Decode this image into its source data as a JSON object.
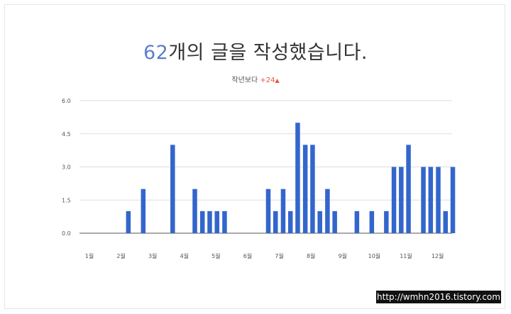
{
  "header": {
    "count": "62",
    "title_rest": "개의 글을 작성했습니다.",
    "compare_label": "작년보다 ",
    "compare_delta": "+24",
    "compare_arrow": "▲"
  },
  "watermark": "http://wmhn2016.tistory.com",
  "colors": {
    "bar": "#3366cc",
    "grid": "#dddddd",
    "accent": "#5b7fc9",
    "delta": "#e8553e"
  },
  "chart_data": {
    "type": "bar",
    "title": "",
    "xlabel": "",
    "ylabel": "",
    "ylim": [
      0,
      6
    ],
    "y_ticks": [
      "0.0",
      "1.5",
      "3.0",
      "4.5",
      "6.0"
    ],
    "categories": [
      "1월",
      "2월",
      "3월",
      "4월",
      "5월",
      "6월",
      "7월",
      "8월",
      "9월",
      "10월",
      "11월",
      "12월"
    ],
    "grid": true,
    "legend": "none",
    "bars": [
      {
        "x": 2.23,
        "value": 1
      },
      {
        "x": 2.7,
        "value": 2
      },
      {
        "x": 3.63,
        "value": 4
      },
      {
        "x": 4.33,
        "value": 2
      },
      {
        "x": 4.57,
        "value": 1
      },
      {
        "x": 4.8,
        "value": 1
      },
      {
        "x": 5.03,
        "value": 1
      },
      {
        "x": 5.27,
        "value": 1
      },
      {
        "x": 6.65,
        "value": 2
      },
      {
        "x": 6.88,
        "value": 1
      },
      {
        "x": 7.12,
        "value": 2
      },
      {
        "x": 7.35,
        "value": 1
      },
      {
        "x": 7.58,
        "value": 5
      },
      {
        "x": 7.82,
        "value": 4
      },
      {
        "x": 8.05,
        "value": 4
      },
      {
        "x": 8.28,
        "value": 1
      },
      {
        "x": 8.52,
        "value": 2
      },
      {
        "x": 8.75,
        "value": 1
      },
      {
        "x": 9.45,
        "value": 1
      },
      {
        "x": 9.92,
        "value": 1
      },
      {
        "x": 10.38,
        "value": 1
      },
      {
        "x": 10.62,
        "value": 3
      },
      {
        "x": 10.85,
        "value": 3
      },
      {
        "x": 11.08,
        "value": 4
      },
      {
        "x": 11.55,
        "value": 3
      },
      {
        "x": 11.78,
        "value": 3
      },
      {
        "x": 12.02,
        "value": 3
      },
      {
        "x": 12.25,
        "value": 1
      },
      {
        "x": 12.48,
        "value": 3
      }
    ]
  }
}
